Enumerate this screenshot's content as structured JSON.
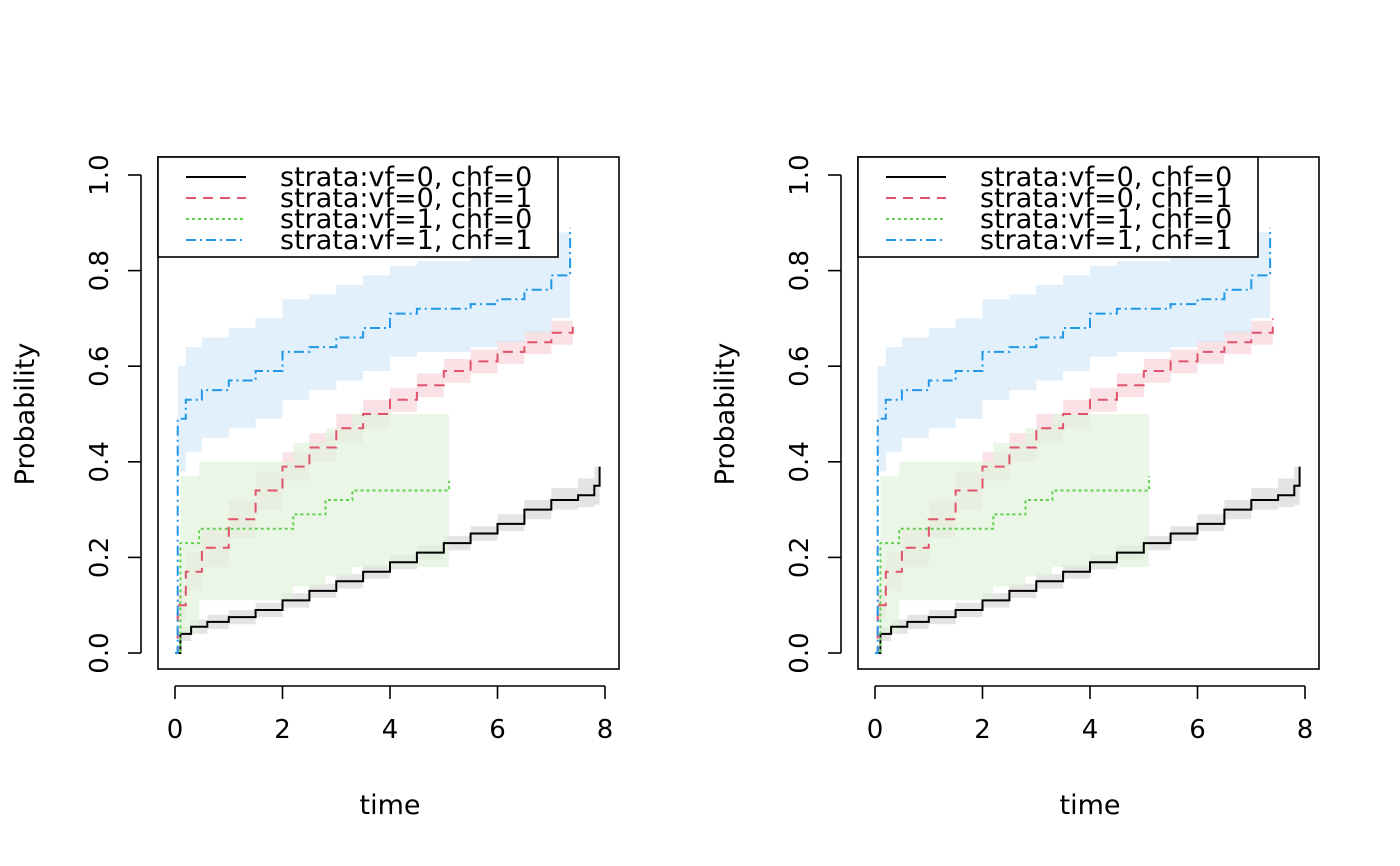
{
  "chart_data": [
    {
      "type": "line",
      "title": "",
      "xlabel": "time",
      "ylabel": "Probability",
      "xlim": [
        0,
        8
      ],
      "ylim": [
        0,
        1
      ],
      "xticks": [
        "0",
        "2",
        "4",
        "6",
        "8"
      ],
      "yticks": [
        "0.0",
        "0.2",
        "0.4",
        "0.6",
        "0.8",
        "1.0"
      ],
      "legend_position": "top-left",
      "grid": false,
      "series": [
        {
          "name": "strata:vf=0, chf=0",
          "color": "#000000",
          "dash": "solid",
          "band_color": "#d9d9d9",
          "x": [
            0,
            0.1,
            0.3,
            0.6,
            1.0,
            1.5,
            2.0,
            2.5,
            3.0,
            3.5,
            4.0,
            4.5,
            5.0,
            5.5,
            6.0,
            6.5,
            7.0,
            7.5,
            7.8,
            7.9
          ],
          "y": [
            0,
            0.04,
            0.055,
            0.065,
            0.075,
            0.09,
            0.11,
            0.13,
            0.15,
            0.17,
            0.19,
            0.21,
            0.23,
            0.25,
            0.27,
            0.3,
            0.32,
            0.33,
            0.35,
            0.39
          ],
          "lower": [
            0,
            0.025,
            0.04,
            0.05,
            0.06,
            0.075,
            0.095,
            0.115,
            0.135,
            0.155,
            0.175,
            0.195,
            0.215,
            0.235,
            0.255,
            0.28,
            0.3,
            0.305,
            0.31,
            0.32
          ],
          "upper": [
            0,
            0.055,
            0.07,
            0.08,
            0.09,
            0.105,
            0.125,
            0.145,
            0.165,
            0.185,
            0.205,
            0.225,
            0.245,
            0.265,
            0.29,
            0.32,
            0.345,
            0.365,
            0.39,
            0.42
          ]
        },
        {
          "name": "strata:vf=0, chf=1",
          "color": "#df536b",
          "dash": "10,7",
          "band_color": "#f6d4dc",
          "x": [
            0,
            0.05,
            0.2,
            0.5,
            1.0,
            1.5,
            2.0,
            2.5,
            3.0,
            3.5,
            4.0,
            4.5,
            5.0,
            5.5,
            6.0,
            6.5,
            7.0,
            7.4
          ],
          "y": [
            0,
            0.1,
            0.17,
            0.22,
            0.28,
            0.34,
            0.39,
            0.43,
            0.47,
            0.5,
            0.53,
            0.56,
            0.59,
            0.61,
            0.63,
            0.65,
            0.67,
            0.69
          ],
          "lower": [
            0,
            0.07,
            0.13,
            0.18,
            0.24,
            0.3,
            0.36,
            0.4,
            0.44,
            0.47,
            0.505,
            0.535,
            0.565,
            0.585,
            0.605,
            0.625,
            0.645,
            0.66
          ],
          "upper": [
            0,
            0.13,
            0.21,
            0.26,
            0.32,
            0.38,
            0.42,
            0.46,
            0.5,
            0.53,
            0.555,
            0.585,
            0.615,
            0.635,
            0.655,
            0.675,
            0.695,
            0.715
          ]
        },
        {
          "name": "strata:vf=1, chf=0",
          "color": "#61d04f",
          "dash": "3,3",
          "band_color": "#e1f3dd",
          "x": [
            0,
            0.1,
            0.45,
            0.55,
            2.2,
            2.8,
            3.3,
            5.1
          ],
          "y": [
            0,
            0.23,
            0.26,
            0.26,
            0.29,
            0.32,
            0.34,
            0.36
          ],
          "lower": [
            0,
            0.04,
            0.11,
            0.11,
            0.14,
            0.16,
            0.18,
            0.19
          ],
          "upper": [
            0,
            0.37,
            0.4,
            0.4,
            0.44,
            0.47,
            0.5,
            0.5
          ]
        },
        {
          "name": "strata:vf=1, chf=1",
          "color": "#2297e6",
          "dash": "10,4,2,4",
          "band_color": "#d4eaf9",
          "x": [
            0,
            0.05,
            0.2,
            0.5,
            1.0,
            1.5,
            2.0,
            2.5,
            3.0,
            3.5,
            4.0,
            4.5,
            5.0,
            5.5,
            6.0,
            6.5,
            7.0,
            7.3,
            7.35
          ],
          "y": [
            0,
            0.49,
            0.53,
            0.55,
            0.57,
            0.59,
            0.63,
            0.64,
            0.66,
            0.68,
            0.71,
            0.72,
            0.72,
            0.73,
            0.74,
            0.76,
            0.79,
            0.79,
            0.89
          ],
          "lower": [
            0,
            0.38,
            0.42,
            0.45,
            0.47,
            0.49,
            0.53,
            0.55,
            0.57,
            0.59,
            0.62,
            0.63,
            0.63,
            0.64,
            0.65,
            0.67,
            0.7,
            0.7,
            0.7
          ],
          "upper": [
            0,
            0.6,
            0.64,
            0.66,
            0.68,
            0.7,
            0.74,
            0.75,
            0.77,
            0.79,
            0.81,
            0.82,
            0.82,
            0.83,
            0.84,
            0.86,
            0.88,
            0.88,
            0.95
          ]
        }
      ]
    },
    {
      "type": "line",
      "title": "",
      "xlabel": "time",
      "ylabel": "Probability",
      "xlim": [
        0,
        8
      ],
      "ylim": [
        0,
        1
      ],
      "xticks": [
        "0",
        "2",
        "4",
        "6",
        "8"
      ],
      "yticks": [
        "0.0",
        "0.2",
        "0.4",
        "0.6",
        "0.8",
        "1.0"
      ],
      "legend_position": "top-left",
      "grid": false,
      "series": [
        {
          "name": "strata:vf=0, chf=0",
          "color": "#000000",
          "dash": "solid",
          "band_color": "#d9d9d9",
          "x": [
            0,
            0.1,
            0.3,
            0.6,
            1.0,
            1.5,
            2.0,
            2.5,
            3.0,
            3.5,
            4.0,
            4.5,
            5.0,
            5.5,
            6.0,
            6.5,
            7.0,
            7.5,
            7.8,
            7.9
          ],
          "y": [
            0,
            0.04,
            0.055,
            0.065,
            0.075,
            0.09,
            0.11,
            0.13,
            0.15,
            0.17,
            0.19,
            0.21,
            0.23,
            0.25,
            0.27,
            0.3,
            0.32,
            0.33,
            0.35,
            0.39
          ],
          "lower": [
            0,
            0.025,
            0.04,
            0.05,
            0.06,
            0.075,
            0.095,
            0.115,
            0.135,
            0.155,
            0.175,
            0.195,
            0.215,
            0.235,
            0.255,
            0.28,
            0.3,
            0.305,
            0.31,
            0.32
          ],
          "upper": [
            0,
            0.055,
            0.07,
            0.08,
            0.09,
            0.105,
            0.125,
            0.145,
            0.165,
            0.185,
            0.205,
            0.225,
            0.245,
            0.265,
            0.29,
            0.32,
            0.345,
            0.365,
            0.39,
            0.42
          ]
        },
        {
          "name": "strata:vf=0, chf=1",
          "color": "#df536b",
          "dash": "10,7",
          "band_color": "#f6d4dc",
          "x": [
            0,
            0.05,
            0.2,
            0.5,
            1.0,
            1.5,
            2.0,
            2.5,
            3.0,
            3.5,
            4.0,
            4.5,
            5.0,
            5.5,
            6.0,
            6.5,
            7.0,
            7.4
          ],
          "y": [
            0,
            0.1,
            0.17,
            0.22,
            0.28,
            0.34,
            0.39,
            0.43,
            0.47,
            0.5,
            0.53,
            0.56,
            0.59,
            0.61,
            0.63,
            0.65,
            0.67,
            0.7
          ],
          "lower": [
            0,
            0.07,
            0.13,
            0.18,
            0.24,
            0.3,
            0.36,
            0.4,
            0.44,
            0.47,
            0.505,
            0.535,
            0.565,
            0.585,
            0.605,
            0.625,
            0.645,
            0.66
          ],
          "upper": [
            0,
            0.13,
            0.21,
            0.26,
            0.32,
            0.38,
            0.42,
            0.46,
            0.5,
            0.53,
            0.555,
            0.585,
            0.615,
            0.635,
            0.655,
            0.675,
            0.695,
            0.715
          ]
        },
        {
          "name": "strata:vf=1, chf=0",
          "color": "#61d04f",
          "dash": "3,3",
          "band_color": "#e1f3dd",
          "x": [
            0,
            0.1,
            0.45,
            0.55,
            2.2,
            2.8,
            3.3,
            5.1
          ],
          "y": [
            0,
            0.23,
            0.26,
            0.26,
            0.29,
            0.32,
            0.34,
            0.37
          ],
          "lower": [
            0,
            0.04,
            0.11,
            0.11,
            0.14,
            0.16,
            0.18,
            0.19
          ],
          "upper": [
            0,
            0.37,
            0.4,
            0.4,
            0.44,
            0.47,
            0.5,
            0.5
          ]
        },
        {
          "name": "strata:vf=1, chf=1",
          "color": "#2297e6",
          "dash": "10,4,2,4",
          "band_color": "#d4eaf9",
          "x": [
            0,
            0.05,
            0.2,
            0.5,
            1.0,
            1.5,
            2.0,
            2.5,
            3.0,
            3.5,
            4.0,
            4.5,
            5.0,
            5.5,
            6.0,
            6.5,
            7.0,
            7.3,
            7.35
          ],
          "y": [
            0,
            0.49,
            0.53,
            0.55,
            0.57,
            0.59,
            0.63,
            0.64,
            0.66,
            0.68,
            0.71,
            0.72,
            0.72,
            0.73,
            0.74,
            0.76,
            0.79,
            0.79,
            0.89
          ],
          "lower": [
            0,
            0.38,
            0.42,
            0.45,
            0.47,
            0.49,
            0.53,
            0.55,
            0.57,
            0.59,
            0.62,
            0.63,
            0.63,
            0.64,
            0.65,
            0.67,
            0.7,
            0.7,
            0.7
          ],
          "upper": [
            0,
            0.6,
            0.64,
            0.66,
            0.68,
            0.7,
            0.74,
            0.75,
            0.77,
            0.79,
            0.81,
            0.82,
            0.82,
            0.83,
            0.84,
            0.86,
            0.88,
            0.88,
            0.95
          ]
        }
      ]
    }
  ]
}
